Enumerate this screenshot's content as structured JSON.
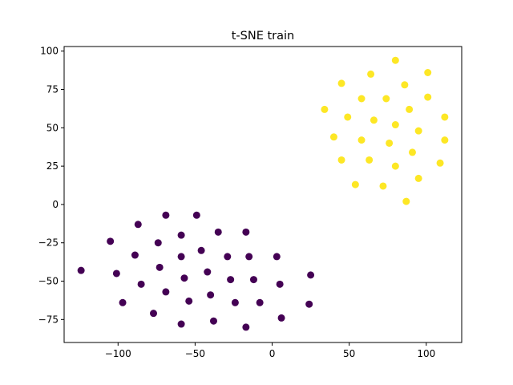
{
  "chart_data": {
    "type": "scatter",
    "title": "t-SNE train",
    "xlabel": "",
    "ylabel": "",
    "xlim": [
      -135,
      123
    ],
    "ylim": [
      -90,
      103
    ],
    "xticks": [
      -100,
      -50,
      0,
      50,
      100
    ],
    "yticks": [
      -75,
      -50,
      -25,
      0,
      25,
      50,
      75,
      100
    ],
    "grid": false,
    "legend": "none",
    "series": [
      {
        "color": "#440154",
        "points": [
          [
            -124,
            -43
          ],
          [
            -105,
            -24
          ],
          [
            -101,
            -45
          ],
          [
            -97,
            -64
          ],
          [
            -89,
            -33
          ],
          [
            -87,
            -13
          ],
          [
            -85,
            -52
          ],
          [
            -77,
            -71
          ],
          [
            -74,
            -25
          ],
          [
            -73,
            -41
          ],
          [
            -69,
            -7
          ],
          [
            -69,
            -57
          ],
          [
            -59,
            -20
          ],
          [
            -59,
            -34
          ],
          [
            -59,
            -78
          ],
          [
            -57,
            -48
          ],
          [
            -54,
            -63
          ],
          [
            -49,
            -7
          ],
          [
            -46,
            -30
          ],
          [
            -42,
            -44
          ],
          [
            -40,
            -59
          ],
          [
            -38,
            -76
          ],
          [
            -35,
            -18
          ],
          [
            -29,
            -34
          ],
          [
            -27,
            -49
          ],
          [
            -24,
            -64
          ],
          [
            -17,
            -18
          ],
          [
            -17,
            -80
          ],
          [
            -15,
            -34
          ],
          [
            -12,
            -49
          ],
          [
            -8,
            -64
          ],
          [
            3,
            -34
          ],
          [
            5,
            -52
          ],
          [
            6,
            -74
          ],
          [
            25,
            -46
          ],
          [
            24,
            -65
          ]
        ]
      },
      {
        "color": "#fde725",
        "points": [
          [
            34,
            62
          ],
          [
            40,
            44
          ],
          [
            45,
            79
          ],
          [
            45,
            29
          ],
          [
            49,
            57
          ],
          [
            54,
            13
          ],
          [
            58,
            69
          ],
          [
            58,
            42
          ],
          [
            63,
            29
          ],
          [
            64,
            85
          ],
          [
            66,
            55
          ],
          [
            72,
            12
          ],
          [
            74,
            69
          ],
          [
            76,
            40
          ],
          [
            80,
            94
          ],
          [
            80,
            52
          ],
          [
            80,
            25
          ],
          [
            86,
            78
          ],
          [
            87,
            2
          ],
          [
            89,
            62
          ],
          [
            91,
            34
          ],
          [
            95,
            48
          ],
          [
            95,
            17
          ],
          [
            101,
            86
          ],
          [
            101,
            70
          ],
          [
            109,
            27
          ],
          [
            112,
            57
          ],
          [
            112,
            42
          ]
        ]
      }
    ]
  }
}
